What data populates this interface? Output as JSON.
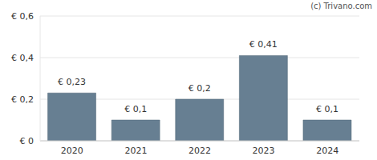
{
  "chart_data": {
    "type": "bar",
    "annotations": [
      "(c) Trivano.com"
    ],
    "categories": [
      "2020",
      "2021",
      "2022",
      "2023",
      "2024"
    ],
    "values": [
      0.23,
      0.1,
      0.2,
      0.41,
      0.1
    ],
    "value_labels": [
      "€ 0,23",
      "€ 0,1",
      "€ 0,2",
      "€ 0,41",
      "€ 0,1"
    ],
    "color": "#677f92",
    "ylim": [
      0,
      0.6
    ],
    "yticks": [
      {
        "value": 0,
        "label": "€ 0"
      },
      {
        "value": 0.2,
        "label": "€ 0,2"
      },
      {
        "value": 0.4,
        "label": "€ 0,4"
      },
      {
        "value": 0.6,
        "label": "€ 0,6"
      }
    ],
    "grid": true,
    "data_labels": true
  }
}
